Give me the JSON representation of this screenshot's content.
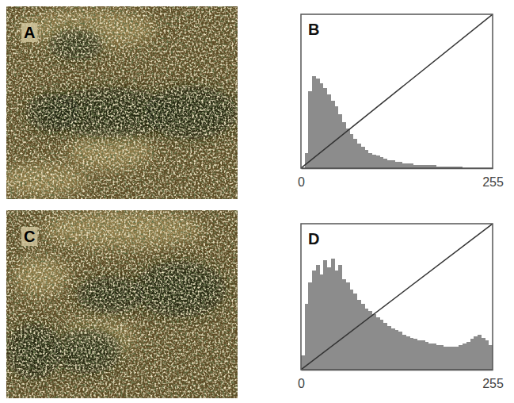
{
  "chart_data": [
    {
      "type": "histogram",
      "panel": "B",
      "bins": [
        0,
        5,
        10,
        15,
        20,
        25,
        30,
        35,
        40,
        45,
        50,
        55,
        60,
        65,
        70,
        75,
        80,
        85,
        90,
        95,
        100,
        105,
        110,
        115,
        120,
        125,
        130,
        135,
        140,
        145,
        150,
        155,
        160,
        165,
        170,
        175,
        180,
        185,
        190,
        195,
        200,
        205,
        210,
        215,
        220,
        225,
        230,
        235,
        240,
        245,
        250,
        255
      ],
      "counts": [
        0,
        10,
        50,
        60,
        58,
        55,
        52,
        48,
        44,
        40,
        35,
        30,
        26,
        22,
        19,
        16,
        14,
        12,
        10,
        9,
        8,
        7,
        6,
        5,
        5,
        4,
        4,
        3,
        3,
        3,
        2,
        2,
        2,
        2,
        2,
        2,
        1,
        1,
        1,
        1,
        1,
        1,
        1,
        0,
        0,
        0,
        0,
        0,
        0,
        0,
        0
      ],
      "color": "#8c8c8c",
      "line": {
        "x": [
          0,
          255
        ],
        "values": [
          0,
          100
        ],
        "color": "#333333"
      },
      "xlim": [
        0,
        255
      ],
      "xticks": [
        0,
        255
      ],
      "ylim": [
        0,
        100
      ],
      "tick_labels": "x"
    },
    {
      "type": "histogram",
      "panel": "D",
      "bins": [
        0,
        5,
        10,
        15,
        20,
        25,
        30,
        35,
        40,
        45,
        50,
        55,
        60,
        65,
        70,
        75,
        80,
        85,
        90,
        95,
        100,
        105,
        110,
        115,
        120,
        125,
        130,
        135,
        140,
        145,
        150,
        155,
        160,
        165,
        170,
        175,
        180,
        185,
        190,
        195,
        200,
        205,
        210,
        215,
        220,
        225,
        230,
        235,
        240,
        245,
        250,
        255
      ],
      "counts": [
        10,
        45,
        60,
        68,
        72,
        65,
        75,
        70,
        76,
        68,
        72,
        62,
        60,
        55,
        52,
        48,
        45,
        42,
        40,
        38,
        36,
        34,
        32,
        30,
        28,
        27,
        26,
        24,
        23,
        22,
        21,
        20,
        20,
        19,
        18,
        18,
        17,
        17,
        16,
        16,
        16,
        16,
        17,
        18,
        19,
        21,
        23,
        24,
        22,
        20,
        17
      ],
      "color": "#8c8c8c",
      "line": {
        "x": [
          0,
          255
        ],
        "values": [
          0,
          100
        ],
        "color": "#333333"
      },
      "xlim": [
        0,
        255
      ],
      "xticks": [
        0,
        255
      ],
      "ylim": [
        0,
        100
      ],
      "tick_labels": "x"
    }
  ],
  "images": [
    {
      "panel": "A"
    },
    {
      "panel": "C"
    }
  ]
}
